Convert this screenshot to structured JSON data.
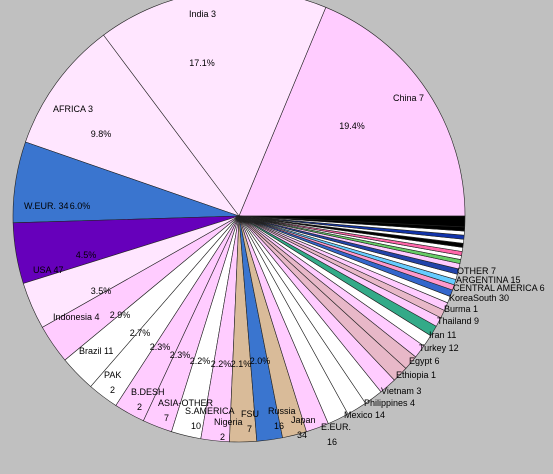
{
  "chart_data": {
    "type": "pie",
    "title": "",
    "start_angle_deg": 0,
    "direction": "counterclockwise-from-east",
    "slices": [
      {
        "label": "China 7",
        "percent": 19.4,
        "color": "#ffccff",
        "pct_label": "19.4%"
      },
      {
        "label": "India 3",
        "percent": 17.1,
        "color": "#ffe6ff",
        "pct_label": "17.1%"
      },
      {
        "label": "AFRICA 3",
        "percent": 9.8,
        "color": "#ffe6ff",
        "pct_label": "9.8%"
      },
      {
        "label": "W.EUR. 34",
        "percent": 6.0,
        "color": "#3a75cf",
        "pct_label": "6.0%"
      },
      {
        "label": "USA 47",
        "percent": 4.5,
        "color": "#6600bb",
        "pct_label": "4.5%"
      },
      {
        "label": "Indonesia 4",
        "percent": 3.5,
        "color": "#ffe6ff",
        "pct_label": "3.5%"
      },
      {
        "label": "Brazil 11",
        "percent": 2.9,
        "color": "#ffccff",
        "pct_label": "2.9%"
      },
      {
        "label": "PAK 2",
        "percent": 2.7,
        "color": "#ffffff",
        "pct_label": "2.7%"
      },
      {
        "label": "B.DESH 2",
        "percent": 2.3,
        "color": "#ffffff",
        "pct_label": "2.3%"
      },
      {
        "label": "ASIA-OTHER 7",
        "percent": 2.3,
        "color": "#ffccff",
        "pct_label": "2.3%"
      },
      {
        "label": "S.AMERICA 10",
        "percent": 2.2,
        "color": "#ffccff",
        "pct_label": "2.2%"
      },
      {
        "label": "Nigeria 2",
        "percent": 2.2,
        "color": "#ffffff",
        "pct_label": "2.2%"
      },
      {
        "label": "FSU 7",
        "percent": 2.1,
        "color": "#ffccff",
        "pct_label": "2.1%"
      },
      {
        "label": "Russia 16",
        "percent": 2.0,
        "color": "#d9bb99",
        "pct_label": "2.0%"
      },
      {
        "label": "Japan 34",
        "percent": 1.9,
        "color": "#3a75cf",
        "pct_label": ""
      },
      {
        "label": "E.EUR. 16",
        "percent": 1.8,
        "color": "#d9bb99",
        "pct_label": ""
      },
      {
        "label": "Mexico 14",
        "percent": 1.7,
        "color": "#ffccff",
        "pct_label": ""
      },
      {
        "label": "Philippines 4",
        "percent": 1.6,
        "color": "#ffffff",
        "pct_label": ""
      },
      {
        "label": "Vietnam 3",
        "percent": 1.5,
        "color": "#ffffff",
        "pct_label": ""
      },
      {
        "label": "Ethiopia 1",
        "percent": 1.4,
        "color": "#ffffff",
        "pct_label": ""
      },
      {
        "label": "Egypt 6",
        "percent": 1.3,
        "color": "#ffccff",
        "pct_label": ""
      },
      {
        "label": "Turkey 12",
        "percent": 1.2,
        "color": "#e8b8c8",
        "pct_label": ""
      },
      {
        "label": "Iran 11",
        "percent": 1.1,
        "color": "#e8b8c8",
        "pct_label": ""
      },
      {
        "label": "Thailand 9",
        "percent": 1.0,
        "color": "#ffccff",
        "pct_label": ""
      },
      {
        "label": "Burma 1",
        "percent": 0.9,
        "color": "#ffffff",
        "pct_label": ""
      },
      {
        "label": "KoreaSouth 30",
        "percent": 0.8,
        "color": "#33aa88",
        "pct_label": ""
      },
      {
        "label": "CENTRAL AMERICA 6",
        "percent": 0.7,
        "color": "#ffccff",
        "pct_label": ""
      },
      {
        "label": "ARGENTINA 15",
        "percent": 0.6,
        "color": "#e8b8c8",
        "pct_label": ""
      },
      {
        "label": "OTHER 7",
        "percent": 0.6,
        "color": "#ffccff",
        "pct_label": ""
      },
      {
        "label": "",
        "percent": 0.5,
        "color": "#ffffff",
        "pct_label": ""
      },
      {
        "label": "",
        "percent": 0.5,
        "color": "#3366cc",
        "pct_label": ""
      },
      {
        "label": "",
        "percent": 0.4,
        "color": "#ff99cc",
        "pct_label": ""
      },
      {
        "label": "",
        "percent": 0.4,
        "color": "#66ccff",
        "pct_label": ""
      },
      {
        "label": "",
        "percent": 0.4,
        "color": "#ffffff",
        "pct_label": ""
      },
      {
        "label": "",
        "percent": 0.4,
        "color": "#2244aa",
        "pct_label": ""
      },
      {
        "label": "",
        "percent": 0.4,
        "color": "#ffccff",
        "pct_label": ""
      },
      {
        "label": "",
        "percent": 0.3,
        "color": "#66cc66",
        "pct_label": ""
      },
      {
        "label": "",
        "percent": 0.3,
        "color": "#ffffff",
        "pct_label": ""
      },
      {
        "label": "",
        "percent": 0.3,
        "color": "#ff66aa",
        "pct_label": ""
      },
      {
        "label": "",
        "percent": 0.3,
        "color": "#ffffff",
        "pct_label": ""
      },
      {
        "label": "",
        "percent": 0.3,
        "color": "#000000",
        "pct_label": ""
      },
      {
        "label": "",
        "percent": 0.3,
        "color": "#ffffff",
        "pct_label": ""
      },
      {
        "label": "",
        "percent": 0.3,
        "color": "#1133aa",
        "pct_label": ""
      },
      {
        "label": "",
        "percent": 0.3,
        "color": "#ffffff",
        "pct_label": ""
      },
      {
        "label": "",
        "percent": 0.3,
        "color": "#000000",
        "pct_label": ""
      },
      {
        "label": "",
        "percent": 0.8,
        "color": "#000000",
        "pct_label": ""
      }
    ]
  }
}
